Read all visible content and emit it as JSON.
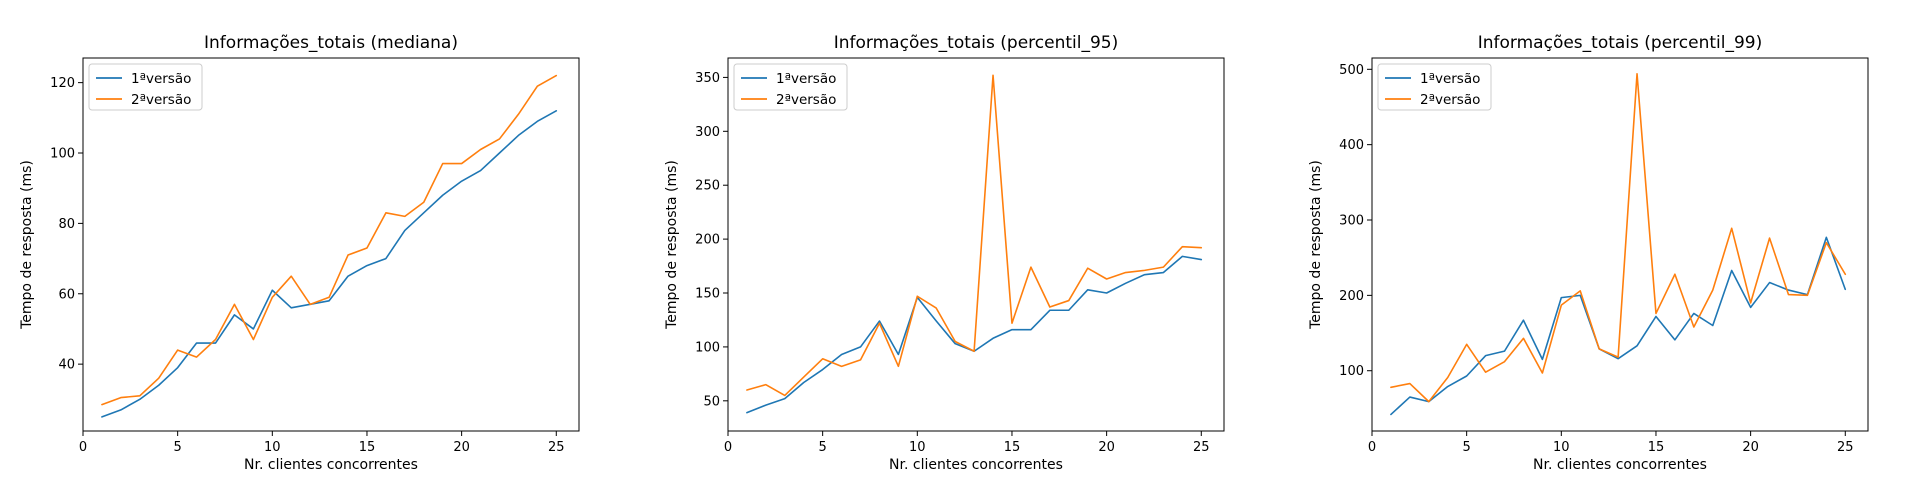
{
  "chart_data": [
    {
      "type": "line",
      "title": "Informações_totais (mediana)",
      "xlabel": "Nr. clientes concorrentes",
      "ylabel": "Tempo de resposta (ms)",
      "xlim": [
        0,
        26.2
      ],
      "ylim": [
        21,
        127
      ],
      "xticks": [
        0,
        5,
        10,
        15,
        20,
        25
      ],
      "yticks": [
        40,
        60,
        80,
        100,
        120
      ],
      "grid": false,
      "legend": "upper-left",
      "x": [
        1,
        2,
        3,
        4,
        5,
        6,
        7,
        8,
        9,
        10,
        11,
        12,
        13,
        14,
        15,
        16,
        17,
        18,
        19,
        20,
        21,
        22,
        23,
        24,
        25
      ],
      "series": [
        {
          "name": "1ªversão",
          "color": "#1f77b4",
          "values": [
            25,
            27,
            30,
            34,
            39,
            46,
            46,
            54,
            50,
            61,
            56,
            57,
            58,
            65,
            68,
            70,
            78,
            83,
            88,
            92,
            95,
            100,
            105,
            109,
            112
          ]
        },
        {
          "name": "2ªversão",
          "color": "#ff7f0e",
          "values": [
            28.5,
            30.5,
            31,
            36,
            44,
            42,
            47,
            57,
            47,
            59,
            65,
            57,
            59,
            71,
            73,
            83,
            82,
            86,
            97,
            97,
            101,
            104,
            111,
            119,
            122
          ]
        }
      ]
    },
    {
      "type": "line",
      "title": "Informações_totais (percentil_95)",
      "xlabel": "Nr. clientes concorrentes",
      "ylabel": "Tempo de resposta (ms)",
      "xlim": [
        0,
        26.2
      ],
      "ylim": [
        22,
        368
      ],
      "xticks": [
        0,
        5,
        10,
        15,
        20,
        25
      ],
      "yticks": [
        50,
        100,
        150,
        200,
        250,
        300,
        350
      ],
      "grid": false,
      "legend": "upper-left",
      "x": [
        1,
        2,
        3,
        4,
        5,
        6,
        7,
        8,
        9,
        10,
        11,
        12,
        13,
        14,
        15,
        16,
        17,
        18,
        19,
        20,
        21,
        22,
        23,
        24,
        25
      ],
      "series": [
        {
          "name": "1ªversão",
          "color": "#1f77b4",
          "values": [
            39,
            46,
            52,
            67,
            79,
            93,
            100,
            124,
            93,
            146,
            124,
            103,
            96,
            108,
            116,
            116,
            134,
            134,
            153,
            150,
            159,
            167,
            169,
            184,
            181
          ]
        },
        {
          "name": "2ªversão",
          "color": "#ff7f0e",
          "values": [
            60,
            65,
            55,
            72,
            89,
            82,
            88,
            122,
            82,
            147,
            136,
            105,
            96,
            352,
            122,
            174,
            137,
            143,
            173,
            163,
            169,
            171,
            174,
            193,
            192
          ]
        }
      ]
    },
    {
      "type": "line",
      "title": "Informações_totais (percentil_99)",
      "xlabel": "Nr. clientes concorrentes",
      "ylabel": "Tempo de resposta (ms)",
      "xlim": [
        0,
        26.2
      ],
      "ylim": [
        20,
        515
      ],
      "xticks": [
        0,
        5,
        10,
        15,
        20,
        25
      ],
      "yticks": [
        100,
        200,
        300,
        400,
        500
      ],
      "grid": false,
      "legend": "upper-left",
      "x": [
        1,
        2,
        3,
        4,
        5,
        6,
        7,
        8,
        9,
        10,
        11,
        12,
        13,
        14,
        15,
        16,
        17,
        18,
        19,
        20,
        21,
        22,
        23,
        24,
        25
      ],
      "series": [
        {
          "name": "1ªversão",
          "color": "#1f77b4",
          "values": [
            42,
            65,
            59,
            79,
            93,
            120,
            126,
            167,
            115,
            197,
            200,
            129,
            116,
            133,
            172,
            141,
            176,
            160,
            233,
            184,
            217,
            207,
            201,
            277,
            208
          ]
        },
        {
          "name": "2ªversão",
          "color": "#ff7f0e",
          "values": [
            78,
            83,
            59,
            91,
            135,
            98,
            112,
            143,
            97,
            187,
            206,
            129,
            118,
            494,
            176,
            228,
            158,
            207,
            289,
            190,
            276,
            201,
            200,
            270,
            228
          ]
        }
      ]
    }
  ]
}
